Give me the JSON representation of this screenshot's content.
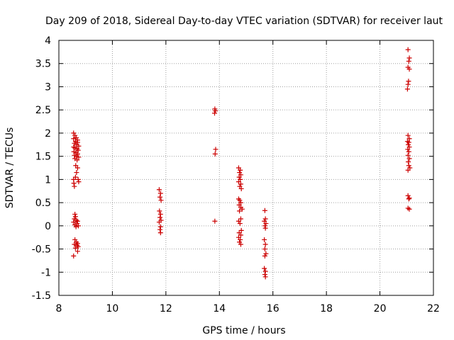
{
  "chart_data": {
    "type": "scatter",
    "title": "Day 209 of 2018, Sidereal Day-to-day VTEC variation (SDTVAR) for receiver laut",
    "xlabel": "GPS time / hours",
    "ylabel": "SDTVAR / TECUs",
    "xlim": [
      8,
      22
    ],
    "ylim": [
      -1.5,
      4
    ],
    "xticks": [
      8,
      10,
      12,
      14,
      16,
      18,
      20,
      22
    ],
    "yticks": [
      -1.5,
      -1,
      -0.5,
      0,
      0.5,
      1,
      1.5,
      2,
      2.5,
      3,
      3.5,
      4
    ],
    "grid": true,
    "marker": "+",
    "color": "#cc0000",
    "points": [
      [
        8.55,
        2.0
      ],
      [
        8.6,
        1.95
      ],
      [
        8.65,
        1.9
      ],
      [
        8.7,
        1.85
      ],
      [
        8.55,
        1.88
      ],
      [
        8.62,
        1.82
      ],
      [
        8.7,
        1.8
      ],
      [
        8.58,
        1.78
      ],
      [
        8.66,
        1.75
      ],
      [
        8.74,
        1.72
      ],
      [
        8.55,
        1.7
      ],
      [
        8.6,
        1.68
      ],
      [
        8.68,
        1.66
      ],
      [
        8.72,
        1.63
      ],
      [
        8.56,
        1.6
      ],
      [
        8.64,
        1.58
      ],
      [
        8.7,
        1.55
      ],
      [
        8.58,
        1.52
      ],
      [
        8.66,
        1.5
      ],
      [
        8.74,
        1.48
      ],
      [
        8.6,
        1.45
      ],
      [
        8.68,
        1.42
      ],
      [
        8.63,
        1.3
      ],
      [
        8.7,
        1.25
      ],
      [
        8.66,
        1.15
      ],
      [
        8.62,
        1.05
      ],
      [
        8.55,
        1.0
      ],
      [
        8.56,
        0.92
      ],
      [
        8.58,
        0.85
      ],
      [
        8.74,
        0.95
      ],
      [
        8.72,
        1.0
      ],
      [
        8.6,
        0.25
      ],
      [
        8.62,
        0.2
      ],
      [
        8.58,
        0.15
      ],
      [
        8.65,
        0.12
      ],
      [
        8.7,
        0.1
      ],
      [
        8.55,
        0.08
      ],
      [
        8.68,
        0.05
      ],
      [
        8.6,
        0.02
      ],
      [
        8.73,
        0.0
      ],
      [
        8.64,
        -0.02
      ],
      [
        8.6,
        -0.3
      ],
      [
        8.65,
        -0.35
      ],
      [
        8.7,
        -0.38
      ],
      [
        8.58,
        -0.4
      ],
      [
        8.68,
        -0.42
      ],
      [
        8.72,
        -0.45
      ],
      [
        8.62,
        -0.48
      ],
      [
        8.7,
        -0.55
      ],
      [
        8.55,
        -0.65
      ],
      [
        11.75,
        0.78
      ],
      [
        11.8,
        0.7
      ],
      [
        11.78,
        0.62
      ],
      [
        11.82,
        0.55
      ],
      [
        11.76,
        0.32
      ],
      [
        11.8,
        0.25
      ],
      [
        11.78,
        0.18
      ],
      [
        11.82,
        0.12
      ],
      [
        11.75,
        0.08
      ],
      [
        11.8,
        -0.02
      ],
      [
        11.78,
        -0.08
      ],
      [
        11.8,
        -0.15
      ],
      [
        13.83,
        2.52
      ],
      [
        13.85,
        2.48
      ],
      [
        13.82,
        2.43
      ],
      [
        13.86,
        1.65
      ],
      [
        13.84,
        1.55
      ],
      [
        13.83,
        0.1
      ],
      [
        14.72,
        1.25
      ],
      [
        14.78,
        1.2
      ],
      [
        14.75,
        1.15
      ],
      [
        14.8,
        1.1
      ],
      [
        14.74,
        1.05
      ],
      [
        14.78,
        1.0
      ],
      [
        14.72,
        0.95
      ],
      [
        14.8,
        0.9
      ],
      [
        14.76,
        0.85
      ],
      [
        14.82,
        0.8
      ],
      [
        14.72,
        0.58
      ],
      [
        14.76,
        0.55
      ],
      [
        14.8,
        0.5
      ],
      [
        14.74,
        0.45
      ],
      [
        14.8,
        0.4
      ],
      [
        14.85,
        0.36
      ],
      [
        14.75,
        0.32
      ],
      [
        14.8,
        0.15
      ],
      [
        14.72,
        0.1
      ],
      [
        14.77,
        0.05
      ],
      [
        14.82,
        -0.1
      ],
      [
        14.74,
        -0.15
      ],
      [
        14.8,
        -0.2
      ],
      [
        14.72,
        -0.25
      ],
      [
        14.78,
        -0.3
      ],
      [
        14.75,
        -0.35
      ],
      [
        14.8,
        -0.4
      ],
      [
        15.7,
        0.33
      ],
      [
        15.72,
        0.15
      ],
      [
        15.68,
        0.1
      ],
      [
        15.74,
        0.05
      ],
      [
        15.7,
        0.0
      ],
      [
        15.72,
        -0.05
      ],
      [
        15.68,
        -0.3
      ],
      [
        15.72,
        -0.4
      ],
      [
        15.7,
        -0.5
      ],
      [
        15.74,
        -0.6
      ],
      [
        15.7,
        -0.65
      ],
      [
        15.68,
        -0.92
      ],
      [
        15.72,
        -0.98
      ],
      [
        15.7,
        -1.05
      ],
      [
        15.72,
        -1.1
      ],
      [
        21.05,
        3.8
      ],
      [
        21.1,
        3.62
      ],
      [
        21.08,
        3.55
      ],
      [
        21.05,
        3.42
      ],
      [
        21.1,
        3.38
      ],
      [
        21.07,
        3.12
      ],
      [
        21.05,
        3.05
      ],
      [
        21.03,
        2.95
      ],
      [
        21.05,
        1.95
      ],
      [
        21.1,
        1.88
      ],
      [
        21.03,
        1.82
      ],
      [
        21.08,
        1.8
      ],
      [
        21.06,
        1.75
      ],
      [
        21.1,
        1.7
      ],
      [
        21.04,
        1.65
      ],
      [
        21.08,
        1.6
      ],
      [
        21.05,
        1.52
      ],
      [
        21.1,
        1.45
      ],
      [
        21.06,
        1.38
      ],
      [
        21.08,
        1.3
      ],
      [
        21.12,
        1.25
      ],
      [
        21.05,
        1.2
      ],
      [
        21.05,
        0.65
      ],
      [
        21.1,
        0.6
      ],
      [
        21.08,
        0.58
      ],
      [
        21.05,
        0.38
      ],
      [
        21.1,
        0.36
      ]
    ]
  }
}
